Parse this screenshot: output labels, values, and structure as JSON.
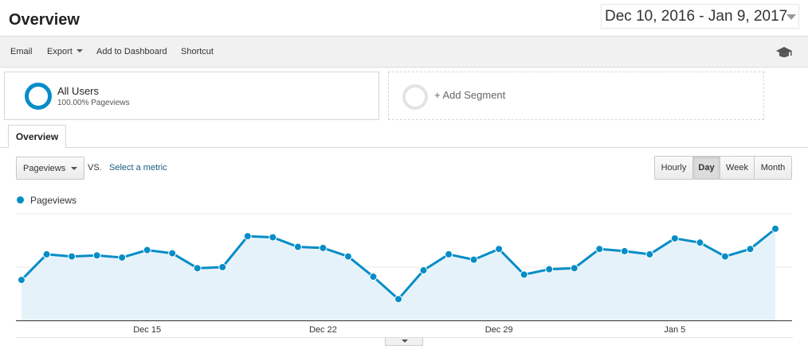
{
  "header": {
    "title": "Overview",
    "date_range": "Dec 10, 2016 - Jan 9, 2017"
  },
  "toolbar": {
    "email": "Email",
    "export": "Export",
    "add_to_dashboard": "Add to Dashboard",
    "shortcut": "Shortcut",
    "help_icon": "graduation-cap-icon"
  },
  "segments": {
    "active": {
      "name": "All Users",
      "detail": "100.00% Pageviews"
    },
    "add_label": "+ Add Segment"
  },
  "tabs": [
    {
      "label": "Overview"
    }
  ],
  "controls": {
    "metric": "Pageviews",
    "vs": "VS.",
    "select_metric": "Select a metric",
    "granularity": [
      {
        "label": "Hourly",
        "active": false
      },
      {
        "label": "Day",
        "active": true
      },
      {
        "label": "Week",
        "active": false
      },
      {
        "label": "Month",
        "active": false
      }
    ]
  },
  "colors": {
    "series": "#058dc7",
    "area_fill": "#e6f2f9"
  },
  "chart_data": {
    "type": "area",
    "series": [
      {
        "name": "Pageviews",
        "values": [
          19,
          31,
          30,
          30.5,
          29.5,
          33,
          31.5,
          24.5,
          25,
          39.5,
          39,
          34.5,
          34,
          30,
          20.5,
          10,
          23.5,
          31,
          28.5,
          33.5,
          21.5,
          24,
          24.5,
          33.5,
          32.5,
          31,
          38.5,
          36.5,
          30,
          33.5,
          43
        ]
      }
    ],
    "x_tick_labels": [
      {
        "label": "Dec 15",
        "index": 5
      },
      {
        "label": "Dec 22",
        "index": 12
      },
      {
        "label": "Dec 29",
        "index": 19
      },
      {
        "label": "Jan 5",
        "index": 26
      }
    ],
    "ylim": [
      0,
      50
    ],
    "gridlines": [
      25,
      50
    ],
    "legend": "top-left"
  }
}
